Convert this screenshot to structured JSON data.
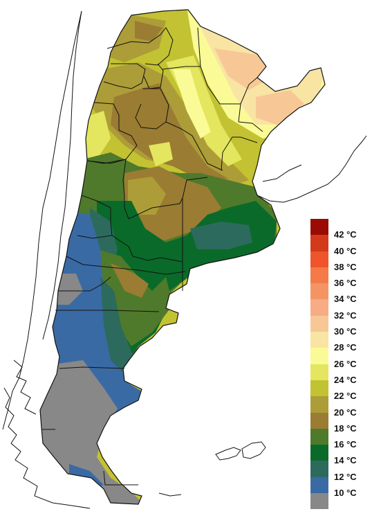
{
  "map": {
    "region": "Argentina",
    "coast_line_color": "#111111",
    "background_color": "#ffffff"
  },
  "legend": {
    "unit": "°C",
    "items": [
      {
        "label": "42 °C",
        "color": "#9b0b05"
      },
      {
        "label": "40 °C",
        "color": "#d23a1a"
      },
      {
        "label": "38 °C",
        "color": "#f0542a"
      },
      {
        "label": "36 °C",
        "color": "#f47a48"
      },
      {
        "label": "34 °C",
        "color": "#f59463"
      },
      {
        "label": "32 °C",
        "color": "#f7ac84"
      },
      {
        "label": "30 °C",
        "color": "#f7c896"
      },
      {
        "label": "28 °C",
        "color": "#f8e4a3"
      },
      {
        "label": "26 °C",
        "color": "#fafa96"
      },
      {
        "label": "24 °C",
        "color": "#e3e65e"
      },
      {
        "label": "22 °C",
        "color": "#c3c232"
      },
      {
        "label": "20 °C",
        "color": "#ad9d38"
      },
      {
        "label": "18 °C",
        "color": "#9a7c32"
      },
      {
        "label": "16 °C",
        "color": "#4f7a2b"
      },
      {
        "label": "14 °C",
        "color": "#0a6a2a"
      },
      {
        "label": "12 °C",
        "color": "#2d6a5e"
      },
      {
        "label": "10 °C",
        "color": "#3a6aa4"
      },
      {
        "label": "",
        "color": "#888888"
      }
    ]
  }
}
